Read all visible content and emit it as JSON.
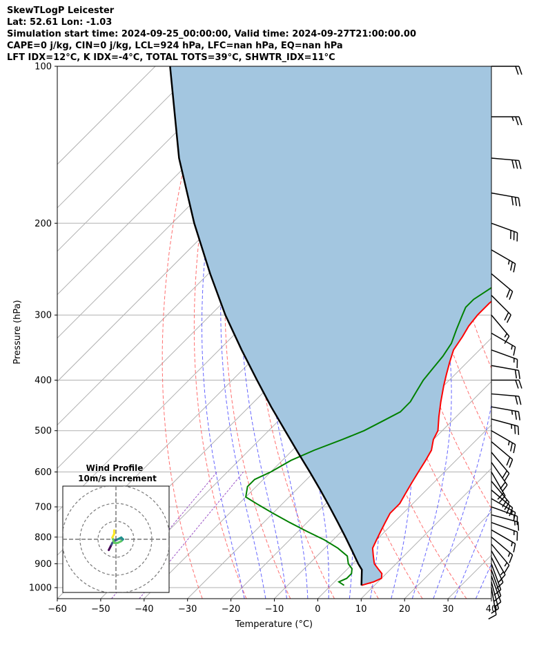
{
  "header": {
    "line1": "SkewTLogP Leicester",
    "line2": "Lat: 52.61   Lon: -1.03",
    "line3": "Simulation start time: 2024-09-25_00:00:00, Valid time: 2024-09-27T21:00:00.00",
    "line4": "CAPE=0 j/kg, CIN=0 j/kg, LCL=924 hPa, LFC=nan hPa, EQ=nan hPa",
    "line5": "LFT IDX=12°C, K IDX=-4°C, TOTAL TOTS=39°C, SHWTR_IDX=11°C"
  },
  "chart_data": {
    "type": "line",
    "subtype": "skew-t log-p",
    "xlabel": "Temperature (°C)",
    "ylabel": "Pressure (hPa)",
    "xlim": [
      -60,
      40
    ],
    "ylim": [
      1050,
      100
    ],
    "y_scale": "log",
    "grid": true,
    "x_ticks": [
      -60,
      -50,
      -40,
      -30,
      -20,
      -10,
      0,
      10,
      20,
      30,
      40
    ],
    "x_tick_labels": [
      "−60",
      "−50",
      "−40",
      "−30",
      "−20",
      "−10",
      "0",
      "10",
      "20",
      "30",
      "40"
    ],
    "y_ticks": [
      1000,
      900,
      800,
      700,
      600,
      500,
      400,
      300,
      200,
      100
    ],
    "y_tick_labels": [
      "1000",
      "900",
      "800",
      "700",
      "600",
      "500",
      "400",
      "300",
      "200",
      "100"
    ],
    "series": [
      {
        "role": "temperature",
        "color": "#ff0000",
        "p": [
          990,
          975,
          960,
          940,
          920,
          900,
          870,
          840,
          810,
          780,
          750,
          720,
          690,
          660,
          630,
          600,
          570,
          545,
          520,
          500,
          470,
          440,
          410,
          390,
          370,
          350,
          330,
          315,
          300,
          285,
          270,
          255,
          240,
          220,
          205,
          190,
          175,
          160,
          150,
          140,
          130,
          120,
          112,
          106,
          100
        ],
        "t": [
          7,
          9,
          10,
          9,
          7,
          5,
          3,
          1,
          0,
          -1,
          -2,
          -3,
          -3,
          -4,
          -5,
          -6,
          -7,
          -8,
          -10,
          -11,
          -14,
          -17,
          -20,
          -22,
          -24,
          -26,
          -27,
          -28,
          -28.5,
          -28.5,
          -28,
          -27,
          -25,
          -20,
          -15,
          -10,
          -5,
          -1,
          1,
          3,
          5,
          6,
          8,
          9,
          10
        ]
      },
      {
        "role": "dewpoint",
        "color": "#008000",
        "p": [
          990,
          975,
          960,
          940,
          920,
          900,
          870,
          840,
          810,
          780,
          750,
          720,
          690,
          670,
          640,
          620,
          600,
          570,
          545,
          520,
          500,
          480,
          460,
          440,
          420,
          400,
          380,
          360,
          340,
          320,
          300,
          290,
          280,
          270,
          260,
          250,
          240,
          230,
          220,
          210,
          200,
          190,
          180,
          170,
          160,
          150,
          140,
          130,
          120,
          110,
          100
        ],
        "t": [
          3,
          1,
          2,
          2,
          1,
          -1,
          -3,
          -7,
          -12,
          -18,
          -24,
          -30,
          -36,
          -40,
          -42,
          -42,
          -40,
          -38,
          -35,
          -31,
          -28,
          -26,
          -24,
          -24,
          -25,
          -26,
          -26.5,
          -27,
          -28,
          -30,
          -32,
          -33,
          -33,
          -32,
          -31,
          -30,
          -31,
          -33,
          -35,
          -38,
          -42,
          -44,
          -43,
          -42,
          -41,
          -40,
          -38,
          -36,
          -34,
          -32,
          -30
        ]
      },
      {
        "role": "parcel",
        "color": "#000000",
        "p": [
          990,
          924,
          900,
          850,
          800,
          750,
          700,
          650,
          600,
          550,
          500,
          450,
          400,
          350,
          300,
          250,
          200,
          150,
          100
        ],
        "t": [
          7,
          3.5,
          1.3,
          -3.1,
          -7.8,
          -12.9,
          -18.4,
          -24.4,
          -31.0,
          -38.3,
          -46.2,
          -54.9,
          -64.3,
          -74.8,
          -86.6,
          -99.6,
          -114.9,
          -133.4,
          -156.6
        ]
      }
    ],
    "shading": {
      "between": [
        "temperature",
        "parcel"
      ],
      "color": "#a3c6e0"
    },
    "background_lines": {
      "isotherms_color": "#b0b0b0",
      "dry_adiabats_color": "#ff5555",
      "moist_adiabats_color": "#4a4aff",
      "mixing_ratio_color": "#9040c0"
    },
    "wind_barbs": {
      "p": [
        100,
        125,
        150,
        175,
        200,
        225,
        250,
        275,
        300,
        325,
        350,
        375,
        400,
        425,
        450,
        475,
        500,
        525,
        550,
        575,
        600,
        625,
        650,
        675,
        700,
        725,
        750,
        775,
        800,
        825,
        850,
        875,
        900,
        925,
        950,
        975,
        1000
      ],
      "speed_kt": [
        20,
        25,
        30,
        30,
        30,
        25,
        20,
        20,
        15,
        15,
        15,
        20,
        20,
        20,
        25,
        25,
        25,
        20,
        20,
        20,
        20,
        20,
        20,
        15,
        15,
        15,
        15,
        15,
        15,
        15,
        15,
        15,
        10,
        10,
        10,
        10,
        10
      ],
      "dir_deg": [
        270,
        270,
        275,
        280,
        290,
        300,
        310,
        315,
        320,
        300,
        290,
        280,
        270,
        275,
        280,
        285,
        300,
        310,
        320,
        325,
        330,
        320,
        310,
        300,
        290,
        285,
        290,
        300,
        310,
        320,
        330,
        335,
        340,
        340,
        340,
        345,
        350
      ]
    },
    "hodograph": {
      "title": "Wind Profile",
      "subtitle": "10m/s increment",
      "rings": [
        10,
        20,
        30
      ],
      "u": [
        -4,
        -3.5,
        -3,
        -2.5,
        -2,
        -1,
        1,
        3,
        4,
        3,
        1,
        -1,
        -2,
        -1,
        -1,
        -1
      ],
      "v": [
        -6,
        -5,
        -4,
        -3,
        -2,
        -1,
        0,
        1,
        0,
        -1,
        -2,
        -2,
        1,
        3,
        4,
        5
      ],
      "colormap": [
        "#440154",
        "#3b528b",
        "#21918c",
        "#5ec962",
        "#fde725"
      ]
    }
  }
}
